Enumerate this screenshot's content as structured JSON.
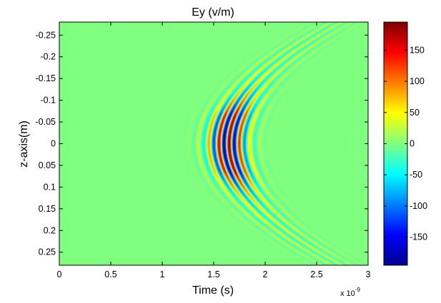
{
  "chart_data": {
    "type": "heatmap",
    "title": "Ey (v/m)",
    "xlabel": "Time (s)",
    "ylabel": "z-axis(m)",
    "x_exponent_label": "x 10",
    "x_exponent_power": "-9",
    "xlim": [
      0,
      3e-09
    ],
    "ylim": [
      -0.28,
      0.28
    ],
    "y_direction": "reversed",
    "x_ticks": [
      {
        "value": 0,
        "label": "0"
      },
      {
        "value": 0.5,
        "label": "0.5"
      },
      {
        "value": 1,
        "label": "1"
      },
      {
        "value": 1.5,
        "label": "1.5"
      },
      {
        "value": 2,
        "label": "2"
      },
      {
        "value": 2.5,
        "label": "2.5"
      },
      {
        "value": 3,
        "label": "3"
      }
    ],
    "y_ticks": [
      {
        "value": -0.25,
        "label": "-0.25"
      },
      {
        "value": -0.2,
        "label": "-0.2"
      },
      {
        "value": -0.15,
        "label": "-0.15"
      },
      {
        "value": -0.1,
        "label": "-0.1"
      },
      {
        "value": -0.05,
        "label": "-0.05"
      },
      {
        "value": 0,
        "label": "0"
      },
      {
        "value": 0.05,
        "label": "0.05"
      },
      {
        "value": 0.1,
        "label": "0.1"
      },
      {
        "value": 0.15,
        "label": "0.15"
      },
      {
        "value": 0.2,
        "label": "0.2"
      },
      {
        "value": 0.25,
        "label": "0.25"
      }
    ],
    "colorbar": {
      "colormap": "jet",
      "clim": [
        -195,
        195
      ],
      "ticks": [
        {
          "value": 150,
          "label": "150"
        },
        {
          "value": 100,
          "label": "100"
        },
        {
          "value": 50,
          "label": "50"
        },
        {
          "value": 0,
          "label": "0"
        },
        {
          "value": -50,
          "label": "-50"
        },
        {
          "value": -100,
          "label": "-100"
        },
        {
          "value": -150,
          "label": "-150"
        }
      ]
    },
    "field_model": {
      "peak_amplitude": 195,
      "background_value": 0,
      "vertex_time_ns": 1.35,
      "curvature_ns_per_m2": 14,
      "pulse_center_ns": 0.28,
      "pulse_width_ns": 0.14,
      "carrier_period_ns": 0.1,
      "beam_width_m": 0.06,
      "tail_amplitude_fraction": 0.45,
      "tail_width_m": 0.22
    },
    "grid": false,
    "legend": "colorbar-right"
  }
}
